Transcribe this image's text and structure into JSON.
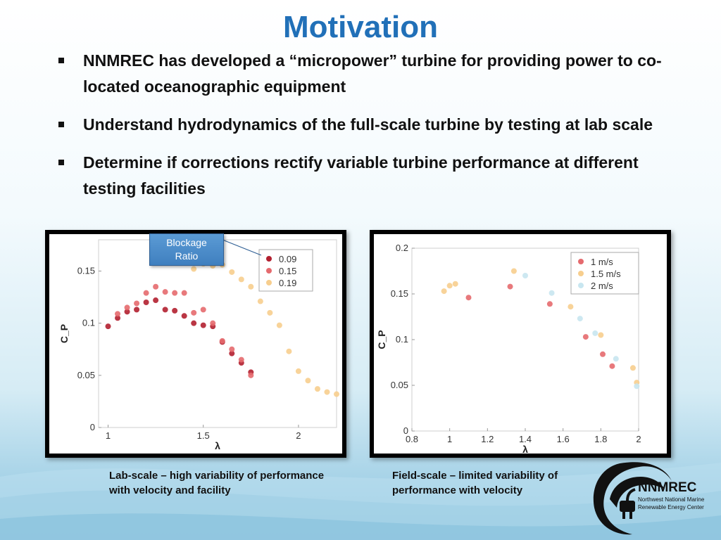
{
  "slide": {
    "title": "Motivation",
    "bullets": [
      "NNMREC has developed a “micropower” turbine for providing power to co-located oceanographic equipment",
      "Understand hydrodynamics of the full-scale turbine by testing at lab scale",
      "Determine if corrections rectify variable turbine performance at different testing facilities"
    ]
  },
  "callout": {
    "line1": "Blockage",
    "line2": "Ratio"
  },
  "captions": {
    "left": "Lab-scale – high variability of performance with velocity and facility",
    "right": "Field-scale – limited variability of performance with velocity"
  },
  "logo": {
    "name": "NNMREC",
    "line1": "Northwest National Marine",
    "line2": "Renewable Energy Center",
    "icon": "plug-wave-icon"
  },
  "chart_data": [
    {
      "type": "scatter",
      "xlabel": "λ",
      "ylabel": "C_P",
      "xlim": [
        0.95,
        2.2
      ],
      "ylim": [
        0,
        0.18
      ],
      "xticks": [
        "1",
        "1.5",
        "2"
      ],
      "xtick_values": [
        1,
        1.5,
        2
      ],
      "yticks": [
        "0",
        "0.05",
        "0.1",
        "0.15"
      ],
      "ytick_values": [
        0,
        0.05,
        0.1,
        0.15
      ],
      "legend_position": "top-right",
      "grid": false,
      "series": [
        {
          "name": "0.09",
          "color": "#b22030",
          "points": [
            [
              1.0,
              0.097
            ],
            [
              1.05,
              0.105
            ],
            [
              1.1,
              0.111
            ],
            [
              1.15,
              0.113
            ],
            [
              1.2,
              0.12
            ],
            [
              1.25,
              0.122
            ],
            [
              1.3,
              0.113
            ],
            [
              1.35,
              0.112
            ],
            [
              1.4,
              0.107
            ],
            [
              1.45,
              0.1
            ],
            [
              1.5,
              0.098
            ],
            [
              1.55,
              0.097
            ],
            [
              1.6,
              0.082
            ],
            [
              1.65,
              0.071
            ],
            [
              1.7,
              0.062
            ],
            [
              1.75,
              0.053
            ]
          ]
        },
        {
          "name": "0.15",
          "color": "#e56a6e",
          "points": [
            [
              1.05,
              0.109
            ],
            [
              1.1,
              0.115
            ],
            [
              1.15,
              0.119
            ],
            [
              1.2,
              0.129
            ],
            [
              1.25,
              0.135
            ],
            [
              1.3,
              0.13
            ],
            [
              1.35,
              0.129
            ],
            [
              1.4,
              0.129
            ],
            [
              1.45,
              0.11
            ],
            [
              1.5,
              0.113
            ],
            [
              1.55,
              0.1
            ],
            [
              1.6,
              0.083
            ],
            [
              1.65,
              0.075
            ],
            [
              1.7,
              0.065
            ],
            [
              1.75,
              0.05
            ]
          ]
        },
        {
          "name": "0.19",
          "color": "#f7ce8e",
          "points": [
            [
              1.45,
              0.152
            ],
            [
              1.5,
              0.157
            ],
            [
              1.55,
              0.155
            ],
            [
              1.6,
              0.156
            ],
            [
              1.65,
              0.149
            ],
            [
              1.7,
              0.142
            ],
            [
              1.75,
              0.135
            ],
            [
              1.8,
              0.121
            ],
            [
              1.85,
              0.11
            ],
            [
              1.9,
              0.098
            ],
            [
              1.95,
              0.073
            ],
            [
              2.0,
              0.054
            ],
            [
              2.05,
              0.045
            ],
            [
              2.1,
              0.037
            ],
            [
              2.15,
              0.034
            ],
            [
              2.2,
              0.032
            ]
          ]
        }
      ]
    },
    {
      "type": "scatter",
      "xlabel": "λ",
      "ylabel": "C_P",
      "xlim": [
        0.8,
        2.0
      ],
      "ylim": [
        0,
        0.2
      ],
      "xticks": [
        "0.8",
        "1",
        "1.2",
        "1.4",
        "1.6",
        "1.8",
        "2"
      ],
      "xtick_values": [
        0.8,
        1.0,
        1.2,
        1.4,
        1.6,
        1.8,
        2.0
      ],
      "yticks": [
        "0",
        "0.05",
        "0.1",
        "0.15",
        "0.2"
      ],
      "ytick_values": [
        0,
        0.05,
        0.1,
        0.15,
        0.2
      ],
      "legend_position": "top-right",
      "grid": false,
      "series": [
        {
          "name": "1 m/s",
          "color": "#e56a6e",
          "points": [
            [
              1.1,
              0.146
            ],
            [
              1.32,
              0.158
            ],
            [
              1.53,
              0.139
            ],
            [
              1.72,
              0.103
            ],
            [
              1.81,
              0.084
            ],
            [
              1.86,
              0.071
            ]
          ]
        },
        {
          "name": "1.5 m/s",
          "color": "#f7ce8e",
          "points": [
            [
              0.97,
              0.153
            ],
            [
              1.0,
              0.159
            ],
            [
              1.03,
              0.161
            ],
            [
              1.34,
              0.175
            ],
            [
              1.64,
              0.136
            ],
            [
              1.8,
              0.105
            ],
            [
              1.97,
              0.069
            ],
            [
              1.99,
              0.053
            ]
          ]
        },
        {
          "name": "2 m/s",
          "color": "#c8e6f0",
          "points": [
            [
              1.4,
              0.17
            ],
            [
              1.54,
              0.151
            ],
            [
              1.69,
              0.123
            ],
            [
              1.77,
              0.107
            ],
            [
              1.88,
              0.079
            ],
            [
              1.99,
              0.049
            ]
          ]
        }
      ]
    }
  ]
}
